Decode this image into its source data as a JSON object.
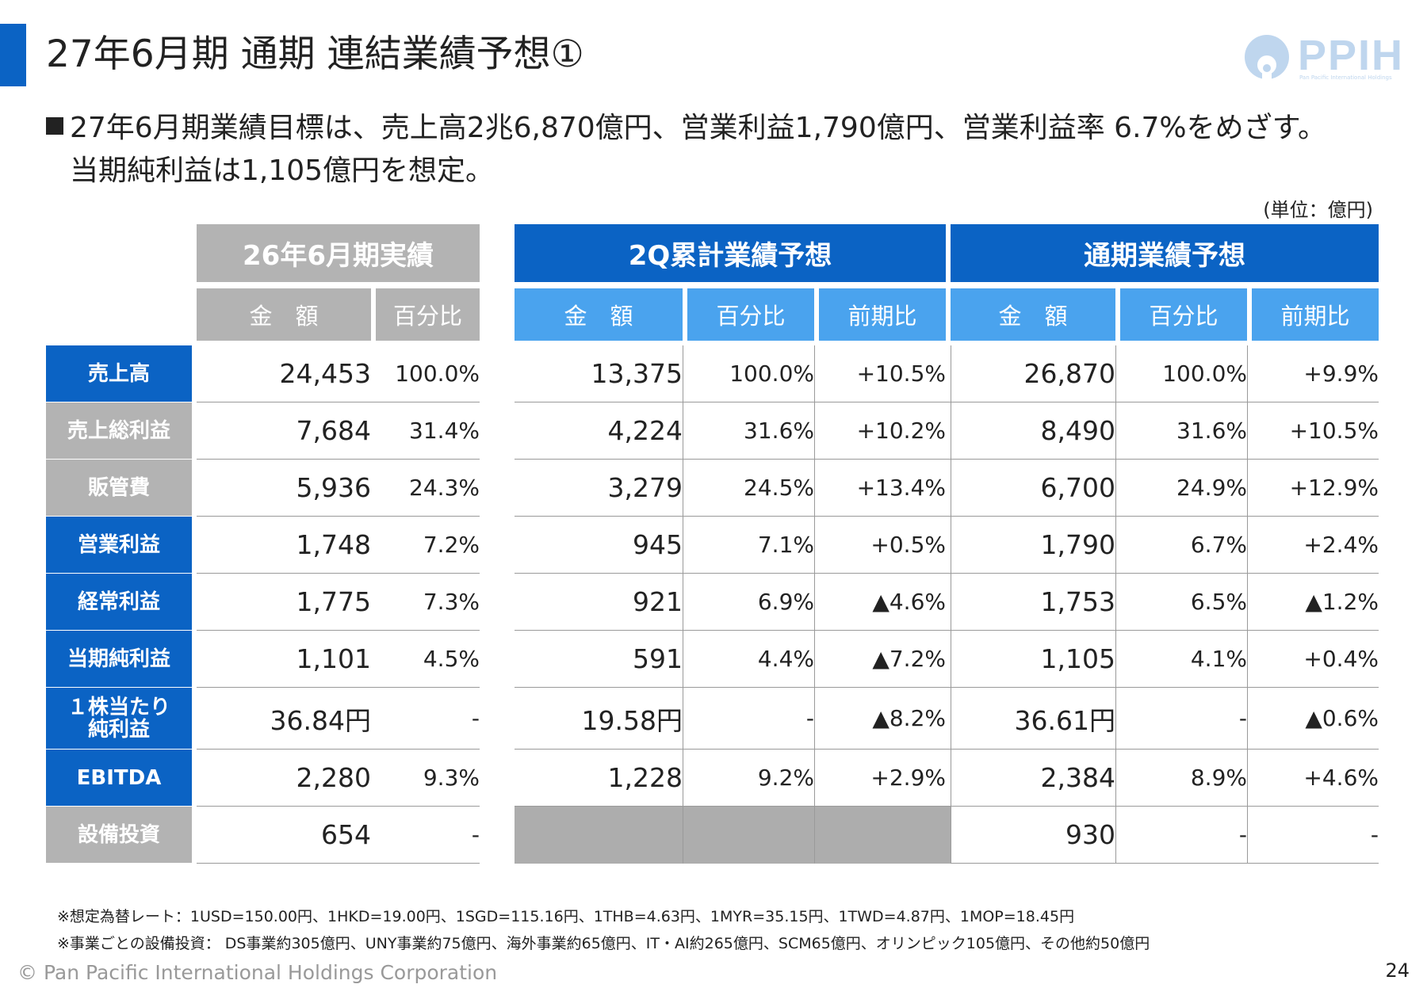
{
  "title": "27年6月期 通期 連結業績予想①",
  "logo": {
    "text": "PPIH",
    "sub": "Pan Pacific International Holdings"
  },
  "bullet_line1": "27年6月期業績目標は、売上高2兆6,870億円、営業利益1,790億円、営業利益率 6.7%をめざす。",
  "bullet_line2": "当期純利益は1,105億円を想定。",
  "unit": "(単位：億円)",
  "groups": {
    "actual": "26年6月期実績",
    "q2": "2Q累計業績予想",
    "full": "通期業績予想"
  },
  "subheaders": {
    "amount": "金　額",
    "ratio": "百分比",
    "yoy": "前期比"
  },
  "rows": [
    {
      "label": "売上高",
      "a_amt": "24,453",
      "a_pct": "100.0%",
      "q_amt": "13,375",
      "q_pct": "100.0%",
      "q_yoy": "+10.5%",
      "f_amt": "26,870",
      "f_pct": "100.0%",
      "f_yoy": "+9.9%"
    },
    {
      "label": "売上総利益",
      "a_amt": "7,684",
      "a_pct": "31.4%",
      "q_amt": "4,224",
      "q_pct": "31.6%",
      "q_yoy": "+10.2%",
      "f_amt": "8,490",
      "f_pct": "31.6%",
      "f_yoy": "+10.5%"
    },
    {
      "label": "販管費",
      "a_amt": "5,936",
      "a_pct": "24.3%",
      "q_amt": "3,279",
      "q_pct": "24.5%",
      "q_yoy": "+13.4%",
      "f_amt": "6,700",
      "f_pct": "24.9%",
      "f_yoy": "+12.9%"
    },
    {
      "label": "営業利益",
      "a_amt": "1,748",
      "a_pct": "7.2%",
      "q_amt": "945",
      "q_pct": "7.1%",
      "q_yoy": "+0.5%",
      "f_amt": "1,790",
      "f_pct": "6.7%",
      "f_yoy": "+2.4%"
    },
    {
      "label": "経常利益",
      "a_amt": "1,775",
      "a_pct": "7.3%",
      "q_amt": "921",
      "q_pct": "6.9%",
      "q_yoy": "▲4.6%",
      "f_amt": "1,753",
      "f_pct": "6.5%",
      "f_yoy": "▲1.2%"
    },
    {
      "label": "当期純利益",
      "a_amt": "1,101",
      "a_pct": "4.5%",
      "q_amt": "591",
      "q_pct": "4.4%",
      "q_yoy": "▲7.2%",
      "f_amt": "1,105",
      "f_pct": "4.1%",
      "f_yoy": "+0.4%"
    },
    {
      "label_1": "１株当たり",
      "label_2": "純利益",
      "a_amt": "36.84円",
      "a_pct": "-",
      "q_amt": "19.58円",
      "q_pct": "-",
      "q_yoy": "▲8.2%",
      "f_amt": "36.61円",
      "f_pct": "-",
      "f_yoy": "▲0.6%"
    },
    {
      "label": "EBITDA",
      "a_amt": "2,280",
      "a_pct": "9.3%",
      "q_amt": "1,228",
      "q_pct": "9.2%",
      "q_yoy": "+2.9%",
      "f_amt": "2,384",
      "f_pct": "8.9%",
      "f_yoy": "+4.6%"
    },
    {
      "label": "設備投資",
      "a_amt": "654",
      "a_pct": "-",
      "f_amt": "930",
      "f_pct": "-",
      "f_yoy": "-"
    }
  ],
  "row_styles": [
    "blue",
    "grey",
    "grey",
    "blue",
    "blue",
    "blue",
    "blue",
    "blue",
    "grey"
  ],
  "colors": {
    "blue": "#0b63c4",
    "light_blue": "#4aa3ee",
    "grey": "#b3b3b3"
  },
  "notes": [
    "※想定為替レート：1USD=150.00円、1HKD=19.00円、1SGD=115.16円、1THB=4.63円、1MYR=35.15円、1TWD=4.87円、1MOP=18.45円",
    "※事業ごとの設備投資： DS事業約305億円、UNY事業約75億円、海外事業約65億円、IT・AI約265億円、SCM65億円、オリンピック105億円、その他約50億円"
  ],
  "footer": "© Pan Pacific International Holdings Corporation",
  "page_number": "24"
}
